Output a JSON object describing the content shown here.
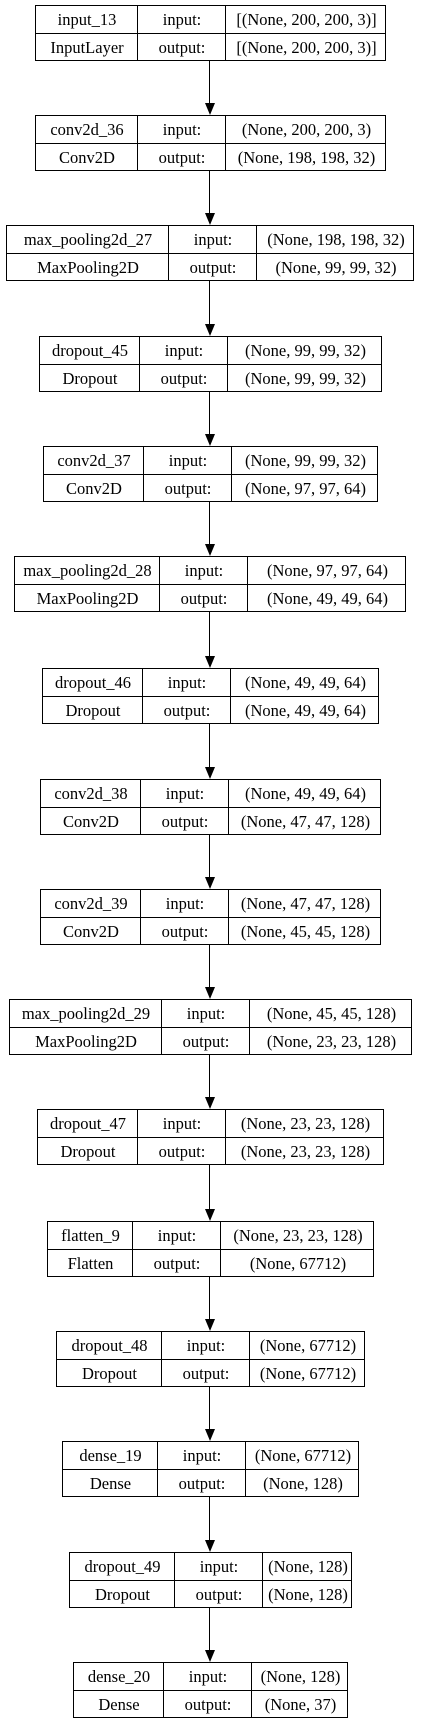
{
  "layers": [
    {
      "name": "input_13",
      "type": "InputLayer",
      "input_label": "input:",
      "output_label": "output:",
      "input_shape": "[(None, 200, 200, 3)]",
      "output_shape": "[(None, 200, 200, 3)]"
    },
    {
      "name": "conv2d_36",
      "type": "Conv2D",
      "input_label": "input:",
      "output_label": "output:",
      "input_shape": "(None, 200, 200, 3)",
      "output_shape": "(None, 198, 198, 32)"
    },
    {
      "name": "max_pooling2d_27",
      "type": "MaxPooling2D",
      "input_label": "input:",
      "output_label": "output:",
      "input_shape": "(None, 198, 198, 32)",
      "output_shape": "(None, 99, 99, 32)"
    },
    {
      "name": "dropout_45",
      "type": "Dropout",
      "input_label": "input:",
      "output_label": "output:",
      "input_shape": "(None, 99, 99, 32)",
      "output_shape": "(None, 99, 99, 32)"
    },
    {
      "name": "conv2d_37",
      "type": "Conv2D",
      "input_label": "input:",
      "output_label": "output:",
      "input_shape": "(None, 99, 99, 32)",
      "output_shape": "(None, 97, 97, 64)"
    },
    {
      "name": "max_pooling2d_28",
      "type": "MaxPooling2D",
      "input_label": "input:",
      "output_label": "output:",
      "input_shape": "(None, 97, 97, 64)",
      "output_shape": "(None, 49, 49, 64)"
    },
    {
      "name": "dropout_46",
      "type": "Dropout",
      "input_label": "input:",
      "output_label": "output:",
      "input_shape": "(None, 49, 49, 64)",
      "output_shape": "(None, 49, 49, 64)"
    },
    {
      "name": "conv2d_38",
      "type": "Conv2D",
      "input_label": "input:",
      "output_label": "output:",
      "input_shape": "(None, 49, 49, 64)",
      "output_shape": "(None, 47, 47, 128)"
    },
    {
      "name": "conv2d_39",
      "type": "Conv2D",
      "input_label": "input:",
      "output_label": "output:",
      "input_shape": "(None, 47, 47, 128)",
      "output_shape": "(None, 45, 45, 128)"
    },
    {
      "name": "max_pooling2d_29",
      "type": "MaxPooling2D",
      "input_label": "input:",
      "output_label": "output:",
      "input_shape": "(None, 45, 45, 128)",
      "output_shape": "(None, 23, 23, 128)"
    },
    {
      "name": "dropout_47",
      "type": "Dropout",
      "input_label": "input:",
      "output_label": "output:",
      "input_shape": "(None, 23, 23, 128)",
      "output_shape": "(None, 23, 23, 128)"
    },
    {
      "name": "flatten_9",
      "type": "Flatten",
      "input_label": "input:",
      "output_label": "output:",
      "input_shape": "(None, 23, 23, 128)",
      "output_shape": "(None, 67712)"
    },
    {
      "name": "dropout_48",
      "type": "Dropout",
      "input_label": "input:",
      "output_label": "output:",
      "input_shape": "(None, 67712)",
      "output_shape": "(None, 67712)"
    },
    {
      "name": "dense_19",
      "type": "Dense",
      "input_label": "input:",
      "output_label": "output:",
      "input_shape": "(None, 67712)",
      "output_shape": "(None, 128)"
    },
    {
      "name": "dropout_49",
      "type": "Dropout",
      "input_label": "input:",
      "output_label": "output:",
      "input_shape": "(None, 128)",
      "output_shape": "(None, 128)"
    },
    {
      "name": "dense_20",
      "type": "Dense",
      "input_label": "input:",
      "output_label": "output:",
      "input_shape": "(None, 128)",
      "output_shape": "(None, 37)"
    }
  ]
}
